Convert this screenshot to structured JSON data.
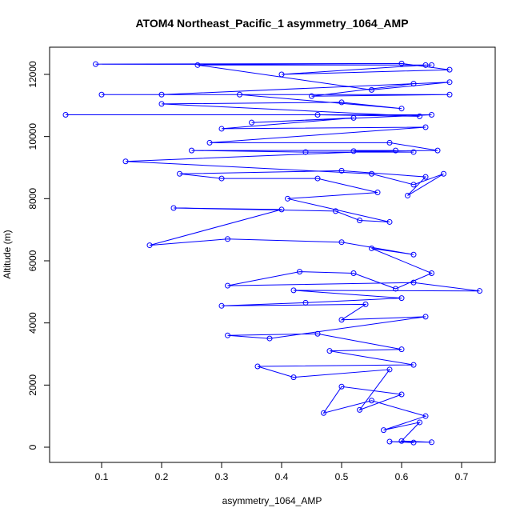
{
  "chart_data": {
    "type": "line",
    "title": "ATOM4 Northeast_Pacific_1 asymmetry_1064_AMP",
    "x_label": "asymmetry_1064_AMP",
    "y_label": "Altitude (m)",
    "x": [
      0.62,
      0.58,
      0.65,
      0.6,
      0.63,
      0.57,
      0.64,
      0.55,
      0.47,
      0.5,
      0.6,
      0.53,
      0.58,
      0.42,
      0.36,
      0.62,
      0.48,
      0.6,
      0.46,
      0.31,
      0.38,
      0.64,
      0.5,
      0.54,
      0.3,
      0.44,
      0.6,
      0.42,
      0.73,
      0.62,
      0.31,
      0.43,
      0.52,
      0.59,
      0.65,
      0.55,
      0.62,
      0.5,
      0.31,
      0.18,
      0.4,
      0.22,
      0.49,
      0.53,
      0.58,
      0.41,
      0.56,
      0.46,
      0.3,
      0.23,
      0.5,
      0.64,
      0.61,
      0.67,
      0.62,
      0.55,
      0.14,
      0.59,
      0.25,
      0.44,
      0.62,
      0.52,
      0.66,
      0.58,
      0.28,
      0.64,
      0.3,
      0.52,
      0.35,
      0.65,
      0.04,
      0.46,
      0.63,
      0.2,
      0.5,
      0.6,
      0.33,
      0.1,
      0.68,
      0.45,
      0.62,
      0.2,
      0.68,
      0.55,
      0.26,
      0.65,
      0.09,
      0.6,
      0.68,
      0.4,
      0.64
    ],
    "series": [
      {
        "color": "#0000ff",
        "values": [
          150,
          180,
          160,
          200,
          800,
          550,
          1000,
          1500,
          1100,
          1950,
          1700,
          1200,
          2500,
          2250,
          2600,
          2650,
          3100,
          3150,
          3650,
          3600,
          3500,
          4200,
          4100,
          4600,
          4550,
          4650,
          4800,
          5050,
          5030,
          5300,
          5200,
          5650,
          5600,
          5100,
          5600,
          6400,
          6200,
          6600,
          6700,
          6500,
          7650,
          7700,
          7600,
          7300,
          7250,
          8000,
          8200,
          8650,
          8650,
          8800,
          8900,
          8700,
          8100,
          8800,
          8450,
          8800,
          9200,
          9550,
          9550,
          9500,
          9500,
          9530,
          9550,
          9800,
          9800,
          10300,
          10250,
          10600,
          10450,
          10700,
          10700,
          10700,
          10650,
          11050,
          11100,
          10900,
          11350,
          11350,
          11350,
          11300,
          11700,
          11350,
          11750,
          11500,
          12300,
          12300,
          12330,
          12350,
          12150,
          12000,
          12300
        ]
      }
    ],
    "xlim": [
      0.0133,
      0.756
    ],
    "ylim": [
      -489,
      12875
    ],
    "xticks": [
      0.1,
      0.2,
      0.3,
      0.4,
      0.5,
      0.6,
      0.7
    ],
    "yticks": [
      0,
      2000,
      4000,
      6000,
      8000,
      10000,
      12000
    ]
  }
}
